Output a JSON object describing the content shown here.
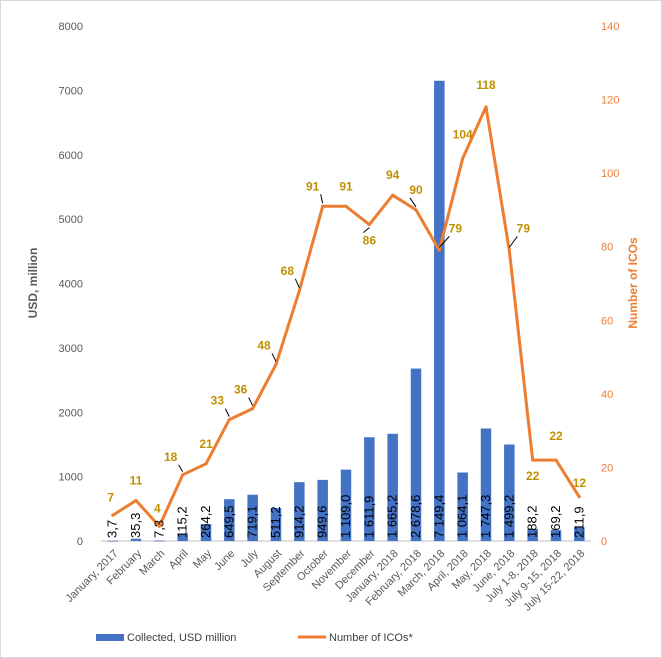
{
  "chart_data": {
    "type": "bar",
    "categories": [
      "January, 2017",
      "February",
      "March",
      "April",
      "May",
      "June",
      "July",
      "August",
      "September",
      "October",
      "November",
      "December",
      "January, 2018",
      "February, 2018",
      "March, 2018",
      "April, 2018",
      "May, 2018",
      "June, 2018",
      "July 1-8, 2018",
      "July 9-15, 2018",
      "July 15-22, 2018"
    ],
    "series": [
      {
        "name": "Collected, USD million",
        "type": "bar",
        "axis": "left",
        "color": "#4472c4",
        "values": [
          3.7,
          35.3,
          7.3,
          115.2,
          264.2,
          649.5,
          719.1,
          511.2,
          914.2,
          949.6,
          1109.0,
          1611.9,
          1665.2,
          2678.6,
          7149.4,
          1064.1,
          1747.3,
          1499.2,
          188.2,
          169.2,
          211.9
        ],
        "labels": [
          "3,7",
          "35,3",
          "7,3",
          "115,2",
          "264,2",
          "649,5",
          "719,1",
          "511,2",
          "914,2",
          "949,6",
          "1 109,0",
          "1 611,9",
          "1 665,2",
          "2 678,6",
          "7 149,4",
          "1 064,1",
          "1 747,3",
          "1 499,2",
          "188,2",
          "169,2",
          "211,9"
        ]
      },
      {
        "name": "Number of ICOs*",
        "type": "line",
        "axis": "right",
        "color": "#ed7d31",
        "values": [
          7,
          11,
          4,
          18,
          21,
          33,
          36,
          48,
          68,
          91,
          91,
          86,
          94,
          90,
          79,
          104,
          118,
          79,
          22,
          22,
          12
        ],
        "labels": [
          "7",
          "11",
          "4",
          "18",
          "21",
          "33",
          "36",
          "48",
          "68",
          "91",
          "91",
          "86",
          "94",
          "90",
          "79",
          "104",
          "118",
          "79",
          "22",
          "22",
          "12"
        ]
      }
    ],
    "ylabel": "USD, million",
    "y2label": "Number of ICOs",
    "ylim": [
      0,
      8000
    ],
    "y2lim": [
      0,
      140
    ],
    "yticks": [
      "0",
      "1000",
      "2000",
      "3000",
      "4000",
      "5000",
      "6000",
      "7000",
      "8000"
    ],
    "y2ticks": [
      "0",
      "20",
      "40",
      "60",
      "80",
      "100",
      "120",
      "140"
    ],
    "grid": false,
    "legend": "bottom",
    "legend_labels": [
      "Collected, USD million",
      "Number of ICOs*"
    ]
  }
}
